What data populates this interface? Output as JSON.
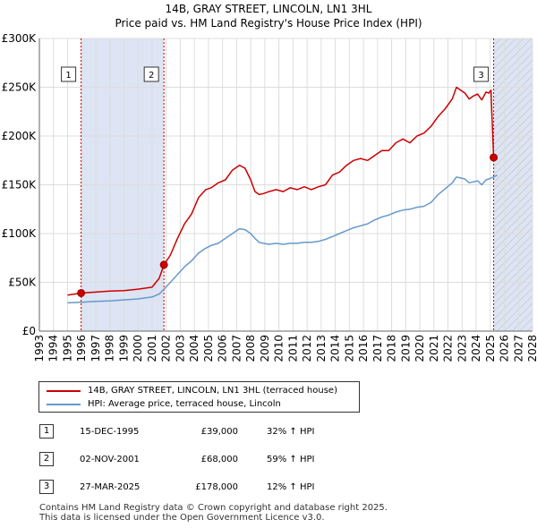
{
  "header": {
    "title": "14B, GRAY STREET, LINCOLN, LN1 3HL",
    "subtitle": "Price paid vs. HM Land Registry's House Price Index (HPI)"
  },
  "colors": {
    "property_line": "#cc0000",
    "hpi_line": "#6699cc",
    "shade": "#dde4f3",
    "grid": "#dddddd"
  },
  "chart_data": {
    "type": "line",
    "title": "14B, GRAY STREET, LINCOLN, LN1 3HL",
    "xlabel": "",
    "ylabel": "",
    "xlim": [
      1993,
      2028
    ],
    "ylim": [
      0,
      300000
    ],
    "x_ticks": [
      "1993",
      "1994",
      "1995",
      "1996",
      "1997",
      "1998",
      "1999",
      "2000",
      "2001",
      "2002",
      "2003",
      "2004",
      "2005",
      "2006",
      "2007",
      "2008",
      "2009",
      "2010",
      "2011",
      "2012",
      "2013",
      "2014",
      "2015",
      "2016",
      "2017",
      "2018",
      "2019",
      "2020",
      "2021",
      "2022",
      "2023",
      "2024",
      "2025",
      "2026",
      "2027",
      "2028"
    ],
    "y_ticks": [
      {
        "value": 0,
        "label": "£0"
      },
      {
        "value": 50000,
        "label": "£50K"
      },
      {
        "value": 100000,
        "label": "£100K"
      },
      {
        "value": 150000,
        "label": "£150K"
      },
      {
        "value": 200000,
        "label": "£200K"
      },
      {
        "value": 250000,
        "label": "£250K"
      },
      {
        "value": 300000,
        "label": "£300K"
      }
    ],
    "shaded_periods": [
      [
        1995.96,
        2001.84
      ],
      [
        2025.24,
        2028
      ]
    ],
    "hatched_range": [
      2025.24,
      2028
    ],
    "series": [
      {
        "name": "14B, GRAY STREET, LINCOLN, LN1 3HL (terraced house)",
        "color": "#cc0000",
        "x": [
          1995.0,
          1995.96,
          1996.5,
          1997.0,
          1998.0,
          1999.0,
          2000.0,
          2000.5,
          2001.0,
          2001.5,
          2001.84,
          2002.3,
          2002.8,
          2003.3,
          2003.8,
          2004.3,
          2004.8,
          2005.2,
          2005.7,
          2006.2,
          2006.7,
          2007.2,
          2007.6,
          2008.0,
          2008.3,
          2008.6,
          2008.9,
          2009.3,
          2009.8,
          2010.3,
          2010.8,
          2011.3,
          2011.8,
          2012.3,
          2012.8,
          2013.3,
          2013.8,
          2014.3,
          2014.8,
          2015.3,
          2015.8,
          2016.3,
          2016.8,
          2017.3,
          2017.8,
          2018.3,
          2018.8,
          2019.3,
          2019.8,
          2020.3,
          2020.8,
          2021.3,
          2021.8,
          2022.3,
          2022.6,
          2022.9,
          2023.2,
          2023.5,
          2023.8,
          2024.1,
          2024.4,
          2024.7,
          2024.9,
          2025.05,
          2025.24,
          2025.5
        ],
        "values": [
          37000,
          39000,
          39500,
          40000,
          41000,
          41500,
          43000,
          44000,
          45000,
          54000,
          68000,
          78000,
          95000,
          110000,
          120000,
          137000,
          145000,
          147000,
          152000,
          155000,
          165000,
          170000,
          167000,
          155000,
          143000,
          140000,
          141000,
          143000,
          145000,
          143000,
          147000,
          145000,
          148000,
          145000,
          148000,
          150000,
          160000,
          163000,
          170000,
          175000,
          177000,
          175000,
          180000,
          185000,
          185000,
          193000,
          197000,
          193000,
          200000,
          203000,
          210000,
          220000,
          228000,
          238000,
          250000,
          247000,
          244000,
          238000,
          241000,
          243000,
          237000,
          245000,
          244000,
          247000,
          178000,
          176000
        ]
      },
      {
        "name": "HPI: Average price, terraced house, Lincoln",
        "color": "#6699cc",
        "x": [
          1995.0,
          1995.96,
          1996.5,
          1997.0,
          1998.0,
          1999.0,
          2000.0,
          2000.5,
          2001.0,
          2001.5,
          2001.84,
          2002.3,
          2002.8,
          2003.3,
          2003.8,
          2004.3,
          2004.8,
          2005.2,
          2005.7,
          2006.2,
          2006.7,
          2007.2,
          2007.6,
          2008.0,
          2008.3,
          2008.6,
          2008.9,
          2009.3,
          2009.8,
          2010.3,
          2010.8,
          2011.3,
          2011.8,
          2012.3,
          2012.8,
          2013.3,
          2013.8,
          2014.3,
          2014.8,
          2015.3,
          2015.8,
          2016.3,
          2016.8,
          2017.3,
          2017.8,
          2018.3,
          2018.8,
          2019.3,
          2019.8,
          2020.3,
          2020.8,
          2021.3,
          2021.8,
          2022.3,
          2022.6,
          2022.9,
          2023.2,
          2023.5,
          2023.8,
          2024.1,
          2024.4,
          2024.7,
          2024.9,
          2025.05,
          2025.24,
          2025.5
        ],
        "values": [
          29000,
          29500,
          30000,
          30500,
          31000,
          32000,
          33000,
          34000,
          35000,
          38000,
          43000,
          50000,
          58000,
          66000,
          72000,
          80000,
          85000,
          88000,
          90000,
          95000,
          100000,
          105000,
          104000,
          100000,
          95000,
          91000,
          90000,
          89000,
          90000,
          89000,
          90000,
          90000,
          91000,
          91000,
          92000,
          94000,
          97000,
          100000,
          103000,
          106000,
          108000,
          110000,
          114000,
          117000,
          119000,
          122000,
          124000,
          125000,
          127000,
          128000,
          132000,
          140000,
          146000,
          152000,
          158000,
          157000,
          156000,
          152000,
          153000,
          154000,
          150000,
          155000,
          156000,
          157000,
          158000,
          160000
        ]
      }
    ],
    "markers": [
      {
        "label": "1",
        "x": 1995.96,
        "value": 39000
      },
      {
        "label": "2",
        "x": 2001.84,
        "value": 68000
      },
      {
        "label": "3",
        "x": 2025.24,
        "value": 178000
      }
    ]
  },
  "legend": {
    "items": [
      {
        "label": "14B, GRAY STREET, LINCOLN, LN1 3HL (terraced house)"
      },
      {
        "label": "HPI: Average price, terraced house, Lincoln"
      }
    ]
  },
  "transactions": [
    {
      "num": "1",
      "date": "15-DEC-1995",
      "price": "£39,000",
      "hpi": "32% ↑ HPI"
    },
    {
      "num": "2",
      "date": "02-NOV-2001",
      "price": "£68,000",
      "hpi": "59% ↑ HPI"
    },
    {
      "num": "3",
      "date": "27-MAR-2025",
      "price": "£178,000",
      "hpi": "12% ↑ HPI"
    }
  ],
  "footer": {
    "line1": "Contains HM Land Registry data © Crown copyright and database right 2025.",
    "line2": "This data is licensed under the Open Government Licence v3.0."
  }
}
